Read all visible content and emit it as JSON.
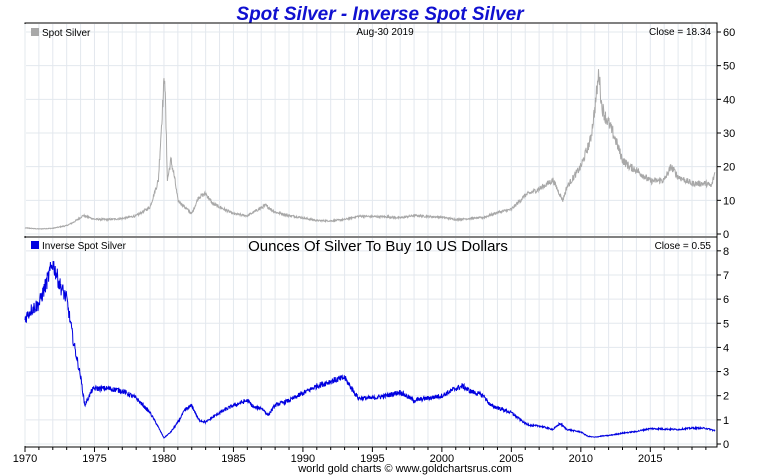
{
  "chart_title": "Spot Silver - Inverse Spot Silver",
  "footer": "world gold charts © www.goldchartsrus.com",
  "colors": {
    "title": "#1010d0",
    "grid": "#e3e8ee",
    "spot_series": "#a8a8a8",
    "inverse_series": "#0000e0",
    "frame": "#000000"
  },
  "chart_data": [
    {
      "type": "line",
      "legend": "Spot Silver",
      "date_label": "Aug-30  2019",
      "close_label": "Close = 18.34",
      "x_ticks": [
        "1970",
        "1975",
        "1980",
        "1985",
        "1990",
        "1995",
        "2000",
        "2005",
        "2010",
        "2015"
      ],
      "y_ticks": [
        0,
        10,
        20,
        30,
        40,
        50,
        60
      ],
      "xlim": [
        1970,
        2019.8
      ],
      "ylim": [
        0,
        60
      ],
      "grid": true,
      "legend_position": "top-left",
      "series": [
        {
          "name": "Spot Silver",
          "x": [
            1970,
            1971,
            1972,
            1973,
            1973.5,
            1974.2,
            1975,
            1976,
            1977,
            1978,
            1979,
            1979.6,
            1979.9,
            1980.05,
            1980.25,
            1980.5,
            1980.75,
            1981,
            1982,
            1982.5,
            1983,
            1983.5,
            1984,
            1985,
            1986,
            1987.3,
            1988,
            1989,
            1990,
            1991,
            1992,
            1993,
            1994,
            1995,
            1996,
            1997,
            1998,
            1999,
            2000,
            2001,
            2002,
            2003,
            2004,
            2005,
            2006,
            2007,
            2008,
            2008.7,
            2009,
            2010,
            2010.7,
            2011,
            2011.3,
            2011.5,
            2011.75,
            2012,
            2012.5,
            2013,
            2013.5,
            2014,
            2015,
            2016,
            2016.5,
            2017,
            2018,
            2019,
            2019.4,
            2019.66
          ],
          "values": [
            1.8,
            1.5,
            1.7,
            2.5,
            3.5,
            5.5,
            4.4,
            4.3,
            4.6,
            5.4,
            8,
            16,
            38,
            48,
            16,
            22,
            17,
            10,
            6,
            11,
            12,
            9,
            8,
            6,
            5.4,
            8.5,
            6.5,
            5.5,
            4.8,
            4.0,
            3.9,
            4.3,
            5.3,
            5.2,
            5.1,
            4.8,
            5.5,
            5.2,
            5.0,
            4.3,
            4.6,
            4.9,
            6.4,
            7.3,
            11.5,
            13.4,
            16,
            10,
            14,
            20,
            28,
            37,
            48,
            38,
            35,
            33,
            28,
            22,
            20,
            19,
            15.7,
            16,
            20,
            17,
            15,
            15,
            14.2,
            18.34
          ]
        }
      ]
    },
    {
      "type": "line",
      "legend": "Inverse Spot Silver",
      "subtitle": "Ounces Of Silver To Buy 10 US Dollars",
      "close_label": "Close = 0.55",
      "x_ticks": [
        "1970",
        "1975",
        "1980",
        "1985",
        "1990",
        "1995",
        "2000",
        "2005",
        "2010",
        "2015"
      ],
      "y_ticks": [
        0,
        1,
        2,
        3,
        4,
        5,
        6,
        7,
        8
      ],
      "xlim": [
        1970,
        2019.8
      ],
      "ylim": [
        0,
        8.2
      ],
      "grid": true,
      "legend_position": "top-left",
      "series": [
        {
          "name": "Inverse Spot Silver",
          "x": [
            1970,
            1970.5,
            1971,
            1971.5,
            1972,
            1972.5,
            1973,
            1973.5,
            1974,
            1974.3,
            1974.8,
            1975,
            1976,
            1977,
            1978,
            1979,
            1979.5,
            1980,
            1980.5,
            1981,
            1981.5,
            1982,
            1982.5,
            1983,
            1983.5,
            1984,
            1985,
            1985.5,
            1986,
            1986.5,
            1987,
            1987.5,
            1988,
            1989,
            1990,
            1991,
            1992,
            1993,
            1993.5,
            1994,
            1995,
            1996,
            1997,
            1998,
            1999,
            2000,
            2001,
            2001.5,
            2002,
            2003,
            2003.5,
            2004,
            2005,
            2006,
            2006.5,
            2007,
            2008,
            2008.5,
            2009,
            2010,
            2010.5,
            2011,
            2011.5,
            2012,
            2013,
            2014,
            2015,
            2016,
            2017,
            2018,
            2019,
            2019.66
          ],
          "values": [
            5.2,
            5.6,
            5.8,
            6.6,
            7.5,
            6.6,
            6.0,
            4.2,
            2.8,
            1.6,
            2.2,
            2.3,
            2.3,
            2.2,
            1.9,
            1.3,
            0.8,
            0.25,
            0.5,
            0.9,
            1.4,
            1.6,
            1.0,
            0.9,
            1.1,
            1.3,
            1.6,
            1.7,
            1.8,
            1.5,
            1.5,
            1.2,
            1.6,
            1.8,
            2.1,
            2.4,
            2.6,
            2.75,
            2.3,
            1.9,
            1.9,
            2.0,
            2.15,
            1.8,
            1.9,
            2.0,
            2.3,
            2.4,
            2.2,
            2.0,
            1.6,
            1.5,
            1.3,
            0.85,
            0.75,
            0.75,
            0.6,
            0.85,
            0.6,
            0.5,
            0.32,
            0.28,
            0.33,
            0.35,
            0.45,
            0.52,
            0.64,
            0.62,
            0.6,
            0.66,
            0.65,
            0.55
          ]
        }
      ]
    }
  ]
}
